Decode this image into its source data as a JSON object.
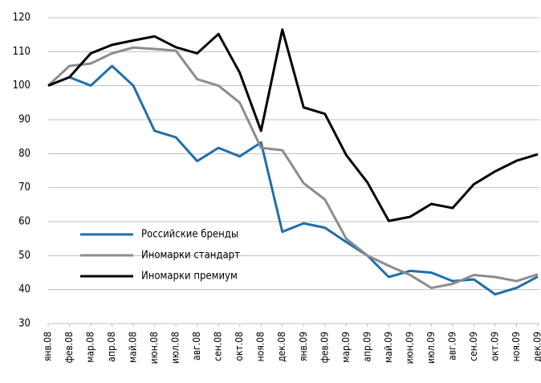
{
  "chart_data": {
    "type": "line",
    "categories": [
      "янв.08",
      "фев.08",
      "мар.08",
      "апр.08",
      "май.08",
      "июн.08",
      "июл.08",
      "авг.08",
      "сен.08",
      "окт.08",
      "ноя.08",
      "дек.08",
      "янв.09",
      "фев.09",
      "мар.09",
      "апр.09",
      "май.09",
      "июн.09",
      "июл.09",
      "авг.09",
      "сен.09",
      "окт.09",
      "ноя.09",
      "дек.09"
    ],
    "series": [
      {
        "name": "Российские бренды",
        "color": "#1f6fab",
        "values": [
          100,
          102.5,
          100,
          105.8,
          100,
          86.7,
          84.8,
          77.8,
          81.7,
          79.2,
          83.3,
          57,
          59.5,
          58.2,
          54,
          50,
          43.7,
          45.5,
          45,
          42.5,
          43,
          38.6,
          40.5,
          43.8
        ]
      },
      {
        "name": "Иномарки стандарт",
        "color": "#8c8c8c",
        "values": [
          100,
          105.8,
          106.5,
          109.5,
          111.2,
          110.8,
          110.3,
          101.9,
          100,
          95,
          81.7,
          81,
          71.3,
          66.5,
          55,
          50,
          47,
          44.3,
          40.5,
          41.7,
          44.3,
          43.7,
          42.5,
          44.5
        ]
      },
      {
        "name": "Иномарки премиум",
        "color": "#000000",
        "values": [
          100,
          102.5,
          109.5,
          112,
          113.3,
          114.5,
          111.3,
          109.5,
          115.2,
          103.8,
          86.7,
          116.5,
          93.6,
          91.7,
          79.6,
          71.5,
          60.2,
          61.4,
          65.2,
          64,
          71,
          74.8,
          77.9,
          79.8
        ]
      }
    ],
    "ylim": [
      30,
      120
    ],
    "yticks": [
      30,
      40,
      50,
      60,
      70,
      80,
      90,
      100,
      110,
      120
    ],
    "grid": true,
    "legend": "lower left"
  }
}
